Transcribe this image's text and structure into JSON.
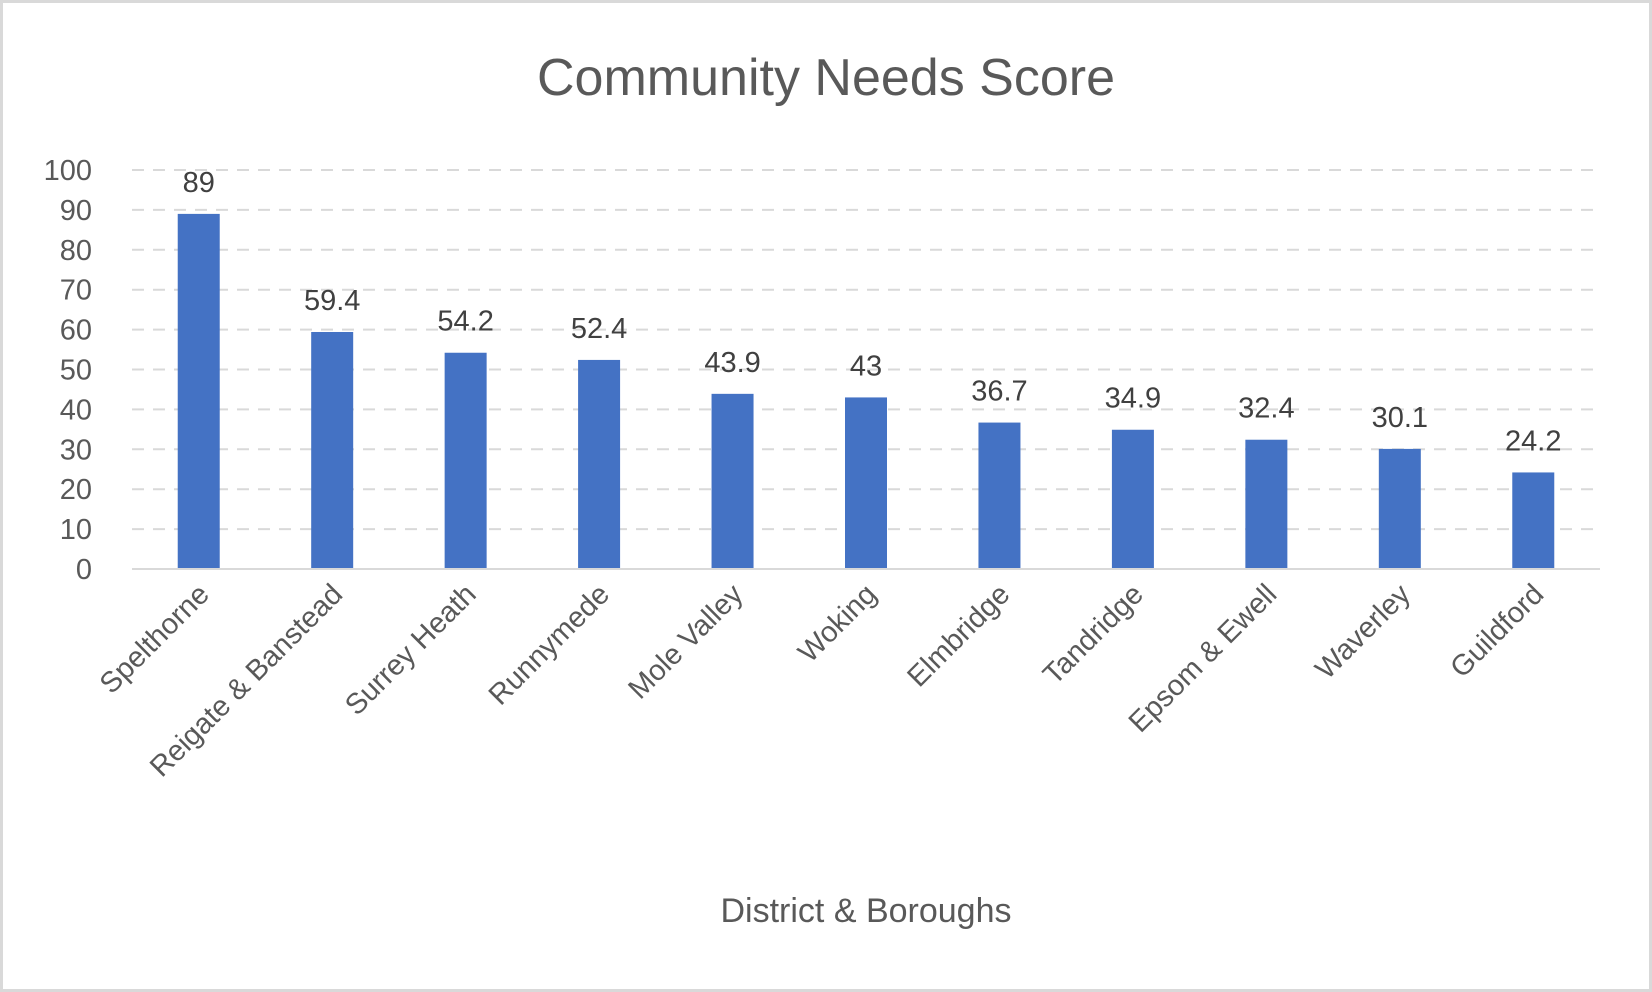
{
  "chart_data": {
    "type": "bar",
    "title": "Community Needs Score",
    "xlabel": "District & Boroughs",
    "ylabel": "",
    "ylim": [
      0,
      100
    ],
    "yticks": [
      0,
      10,
      20,
      30,
      40,
      50,
      60,
      70,
      80,
      90,
      100
    ],
    "grid": true,
    "grid_style": "dashed",
    "legend": null,
    "data_labels": true,
    "categories": [
      "Spelthorne",
      "Reigate & Banstead",
      "Surrey Heath",
      "Runnymede",
      "Mole Valley",
      "Woking",
      "Elmbridge",
      "Tandridge",
      "Epsom & Ewell",
      "Waverley",
      "Guildford"
    ],
    "values": [
      89,
      59.4,
      54.2,
      52.4,
      43.9,
      43,
      36.7,
      34.9,
      32.4,
      30.1,
      24.2
    ],
    "value_labels": [
      "89",
      "59.4",
      "54.2",
      "52.4",
      "43.9",
      "43",
      "36.7",
      "34.9",
      "32.4",
      "30.1",
      "24.2"
    ],
    "colors": {
      "bar": "#4472C4",
      "gridline": "#D9D9D9",
      "axis_text": "#595959",
      "data_label_text": "#404040",
      "frame_border": "#D9D9D9"
    }
  }
}
